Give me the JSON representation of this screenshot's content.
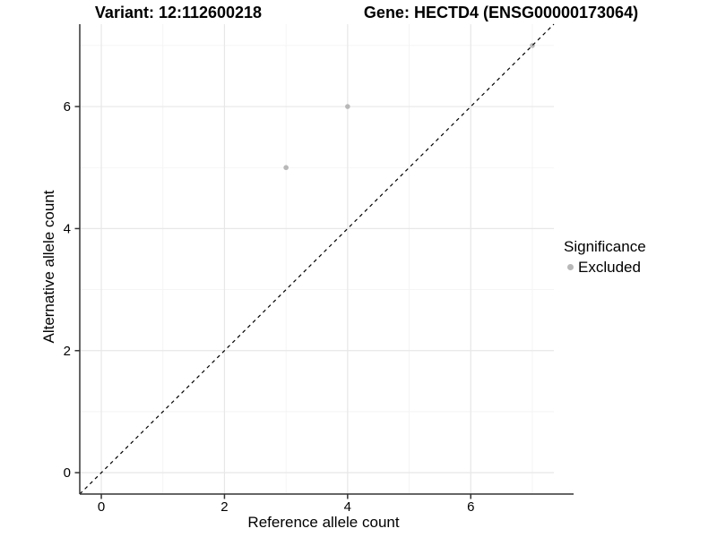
{
  "chart_data": {
    "type": "scatter",
    "title_left": "Variant: 12:112600218",
    "title_right": "Gene: HECTD4 (ENSG00000173064)",
    "xlabel": "Reference allele count",
    "ylabel": "Alternative allele count",
    "xlim": [
      -0.35,
      7.35
    ],
    "ylim": [
      -0.35,
      7.35
    ],
    "xticks": [
      0,
      2,
      4,
      6
    ],
    "yticks": [
      0,
      2,
      4,
      6
    ],
    "minor_ticks": [
      1,
      3,
      5,
      7
    ],
    "grid": "on",
    "abline": {
      "slope": 1,
      "intercept": 0,
      "style": "dashed",
      "color": "#000000"
    },
    "series": [
      {
        "name": "Excluded",
        "color": "#b8b8b8",
        "points": [
          {
            "x": 3,
            "y": 5
          },
          {
            "x": 4,
            "y": 6
          },
          {
            "x": 7,
            "y": 7
          }
        ]
      }
    ],
    "legend": {
      "position": "right",
      "title": "Significance",
      "items": [
        {
          "label": "Excluded",
          "color": "#b8b8b8"
        }
      ]
    }
  },
  "colors": {
    "background": "#ffffff",
    "point": "#b8b8b8",
    "grid_major": "#e7e7e7",
    "grid_minor": "#f2f2f2",
    "axis": "#333333",
    "identity_line": "#000000",
    "text": "#000000"
  }
}
